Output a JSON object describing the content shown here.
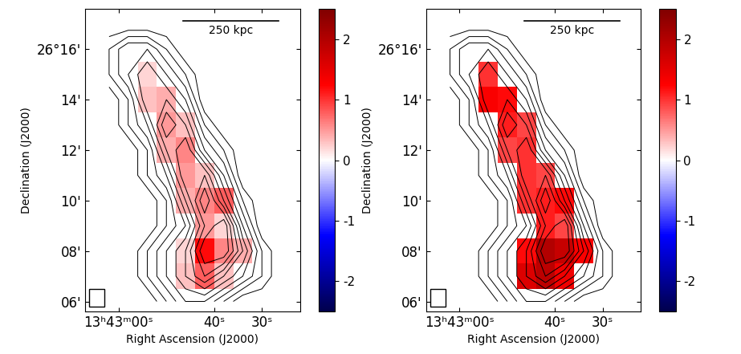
{
  "chart_data": [
    {
      "type": "heatmap",
      "x_label": "Right Ascension (J2000)",
      "y_label": "Declination (J2000)",
      "x": [
        62,
        58,
        54,
        50,
        46,
        42,
        38,
        34,
        30,
        26
      ],
      "y": [
        6,
        7,
        8,
        9,
        10,
        11,
        12,
        13,
        14,
        15,
        16,
        17
      ],
      "xlim": [
        67,
        22
      ],
      "ylim": [
        5.6,
        17.6
      ],
      "xticks": [
        {
          "value": 60,
          "label": "13ʰ43ᵐ00ˢ"
        },
        {
          "value": 40,
          "label": "40ˢ"
        },
        {
          "value": 30,
          "label": "30ˢ"
        }
      ],
      "yticks": [
        {
          "value": 16,
          "label": "26°16'"
        },
        {
          "value": 14,
          "label": "14'"
        },
        {
          "value": 12,
          "label": "12'"
        },
        {
          "value": 10,
          "label": "10'"
        },
        {
          "value": 8,
          "label": "08'"
        },
        {
          "value": 6,
          "label": "06'"
        }
      ],
      "intensity": [
        [
          0,
          0,
          0,
          1,
          2,
          2,
          1,
          0,
          0,
          0
        ],
        [
          0,
          0,
          1,
          2,
          3,
          4,
          3,
          2,
          1,
          0
        ],
        [
          0,
          0,
          1,
          2,
          3,
          5,
          5,
          3,
          1,
          0
        ],
        [
          0,
          0,
          0,
          1,
          2,
          4,
          5,
          2,
          0,
          0
        ],
        [
          0,
          0,
          0,
          1,
          3,
          5,
          3,
          1,
          0,
          0
        ],
        [
          0,
          0,
          1,
          2,
          4,
          4,
          2,
          0,
          0,
          0
        ],
        [
          0,
          0,
          1,
          3,
          4,
          2,
          1,
          0,
          0,
          0
        ],
        [
          0,
          1,
          2,
          4,
          3,
          1,
          0,
          0,
          0,
          0
        ],
        [
          0,
          1,
          3,
          3,
          2,
          0,
          0,
          0,
          0,
          0
        ],
        [
          1,
          2,
          3,
          2,
          1,
          0,
          0,
          0,
          0,
          0
        ],
        [
          1,
          2,
          2,
          1,
          0,
          0,
          0,
          0,
          0,
          0
        ],
        [
          0,
          0,
          0,
          0,
          0,
          0,
          0,
          0,
          0,
          0
        ]
      ],
      "contour_levels": [
        0.5,
        1,
        1.5,
        2,
        2.5,
        3,
        3.5,
        4,
        4.5
      ],
      "cells": [
        [
          null,
          null,
          null,
          null,
          null,
          null,
          null,
          null,
          null,
          null
        ],
        [
          null,
          null,
          null,
          null,
          0.3,
          0.8,
          0.3,
          null,
          null,
          null
        ],
        [
          null,
          null,
          null,
          null,
          0.2,
          1.2,
          0.6,
          0.4,
          null,
          null
        ],
        [
          null,
          null,
          null,
          null,
          null,
          0.5,
          0.2,
          null,
          null,
          null
        ],
        [
          null,
          null,
          null,
          null,
          0.4,
          0.6,
          0.8,
          null,
          null,
          null
        ],
        [
          null,
          null,
          null,
          null,
          0.5,
          0.3,
          null,
          null,
          null,
          null
        ],
        [
          null,
          null,
          null,
          0.4,
          0.6,
          null,
          null,
          null,
          null,
          null
        ],
        [
          null,
          null,
          null,
          0.5,
          0.3,
          null,
          null,
          null,
          null,
          null
        ],
        [
          null,
          null,
          0.3,
          0.4,
          null,
          null,
          null,
          null,
          null,
          null
        ],
        [
          null,
          null,
          0.2,
          null,
          null,
          null,
          null,
          null,
          null,
          null
        ],
        [
          null,
          null,
          null,
          null,
          null,
          null,
          null,
          null,
          null,
          null
        ],
        [
          null,
          null,
          null,
          null,
          null,
          null,
          null,
          null,
          null,
          null
        ]
      ],
      "colorbar_lim": [
        -2.5,
        2.5
      ],
      "colorbar_ticks": [
        -2,
        -1,
        0,
        1,
        2
      ],
      "scale_bar": {
        "label": "250 kpc",
        "length": 20
      }
    },
    {
      "type": "heatmap",
      "x_label": "Right Ascension (J2000)",
      "y_label": "Declination (J2000)",
      "x": [
        62,
        58,
        54,
        50,
        46,
        42,
        38,
        34,
        30,
        26
      ],
      "y": [
        6,
        7,
        8,
        9,
        10,
        11,
        12,
        13,
        14,
        15,
        16,
        17
      ],
      "xlim": [
        67,
        22
      ],
      "ylim": [
        5.6,
        17.6
      ],
      "xticks": [
        {
          "value": 60,
          "label": "13ʰ43ᵐ00ˢ"
        },
        {
          "value": 40,
          "label": "40ˢ"
        },
        {
          "value": 30,
          "label": "30ˢ"
        }
      ],
      "yticks": [
        {
          "value": 16,
          "label": "26°16'"
        },
        {
          "value": 14,
          "label": "14'"
        },
        {
          "value": 12,
          "label": "12'"
        },
        {
          "value": 10,
          "label": "10'"
        },
        {
          "value": 8,
          "label": "08'"
        },
        {
          "value": 6,
          "label": "06'"
        }
      ],
      "intensity": [
        [
          0,
          0,
          0,
          1,
          2,
          2,
          1,
          0,
          0,
          0
        ],
        [
          0,
          0,
          1,
          2,
          3,
          4,
          3,
          2,
          1,
          0
        ],
        [
          0,
          0,
          1,
          2,
          3,
          5,
          5,
          3,
          1,
          0
        ],
        [
          0,
          0,
          0,
          1,
          2,
          4,
          5,
          2,
          0,
          0
        ],
        [
          0,
          0,
          0,
          1,
          3,
          5,
          3,
          1,
          0,
          0
        ],
        [
          0,
          0,
          1,
          2,
          4,
          4,
          2,
          0,
          0,
          0
        ],
        [
          0,
          0,
          1,
          3,
          4,
          2,
          1,
          0,
          0,
          0
        ],
        [
          0,
          1,
          2,
          4,
          3,
          1,
          0,
          0,
          0,
          0
        ],
        [
          0,
          1,
          3,
          3,
          2,
          0,
          0,
          0,
          0,
          0
        ],
        [
          1,
          2,
          3,
          2,
          1,
          0,
          0,
          0,
          0,
          0
        ],
        [
          1,
          2,
          2,
          1,
          0,
          0,
          0,
          0,
          0,
          0
        ],
        [
          0,
          0,
          0,
          0,
          0,
          0,
          0,
          0,
          0,
          0
        ]
      ],
      "contour_levels": [
        0.5,
        1,
        1.5,
        2,
        2.5,
        3,
        3.5,
        4,
        4.5
      ],
      "cells": [
        [
          null,
          null,
          null,
          null,
          null,
          null,
          null,
          null,
          null,
          null
        ],
        [
          null,
          null,
          null,
          null,
          1.6,
          1.9,
          1.4,
          null,
          null,
          null
        ],
        [
          null,
          null,
          null,
          null,
          1.2,
          2.0,
          1.8,
          1.3,
          null,
          null
        ],
        [
          null,
          null,
          null,
          null,
          null,
          1.1,
          0.9,
          null,
          null,
          null
        ],
        [
          null,
          null,
          null,
          null,
          1.0,
          1.1,
          1.2,
          null,
          null,
          null
        ],
        [
          null,
          null,
          null,
          null,
          1.0,
          0.9,
          null,
          null,
          null,
          null
        ],
        [
          null,
          null,
          null,
          0.9,
          1.0,
          null,
          null,
          null,
          null,
          null
        ],
        [
          null,
          null,
          null,
          1.1,
          0.9,
          null,
          null,
          null,
          null,
          null
        ],
        [
          null,
          null,
          1.3,
          1.2,
          null,
          null,
          null,
          null,
          null,
          null
        ],
        [
          null,
          null,
          1.0,
          null,
          null,
          null,
          null,
          null,
          null,
          null
        ],
        [
          null,
          null,
          null,
          null,
          null,
          null,
          null,
          null,
          null,
          null
        ],
        [
          null,
          null,
          null,
          null,
          null,
          null,
          null,
          null,
          null,
          null
        ]
      ],
      "colorbar_lim": [
        -2.5,
        2.5
      ],
      "colorbar_ticks": [
        -2,
        -1,
        0,
        1,
        2
      ],
      "scale_bar": {
        "label": "250 kpc",
        "length": 20
      }
    }
  ]
}
